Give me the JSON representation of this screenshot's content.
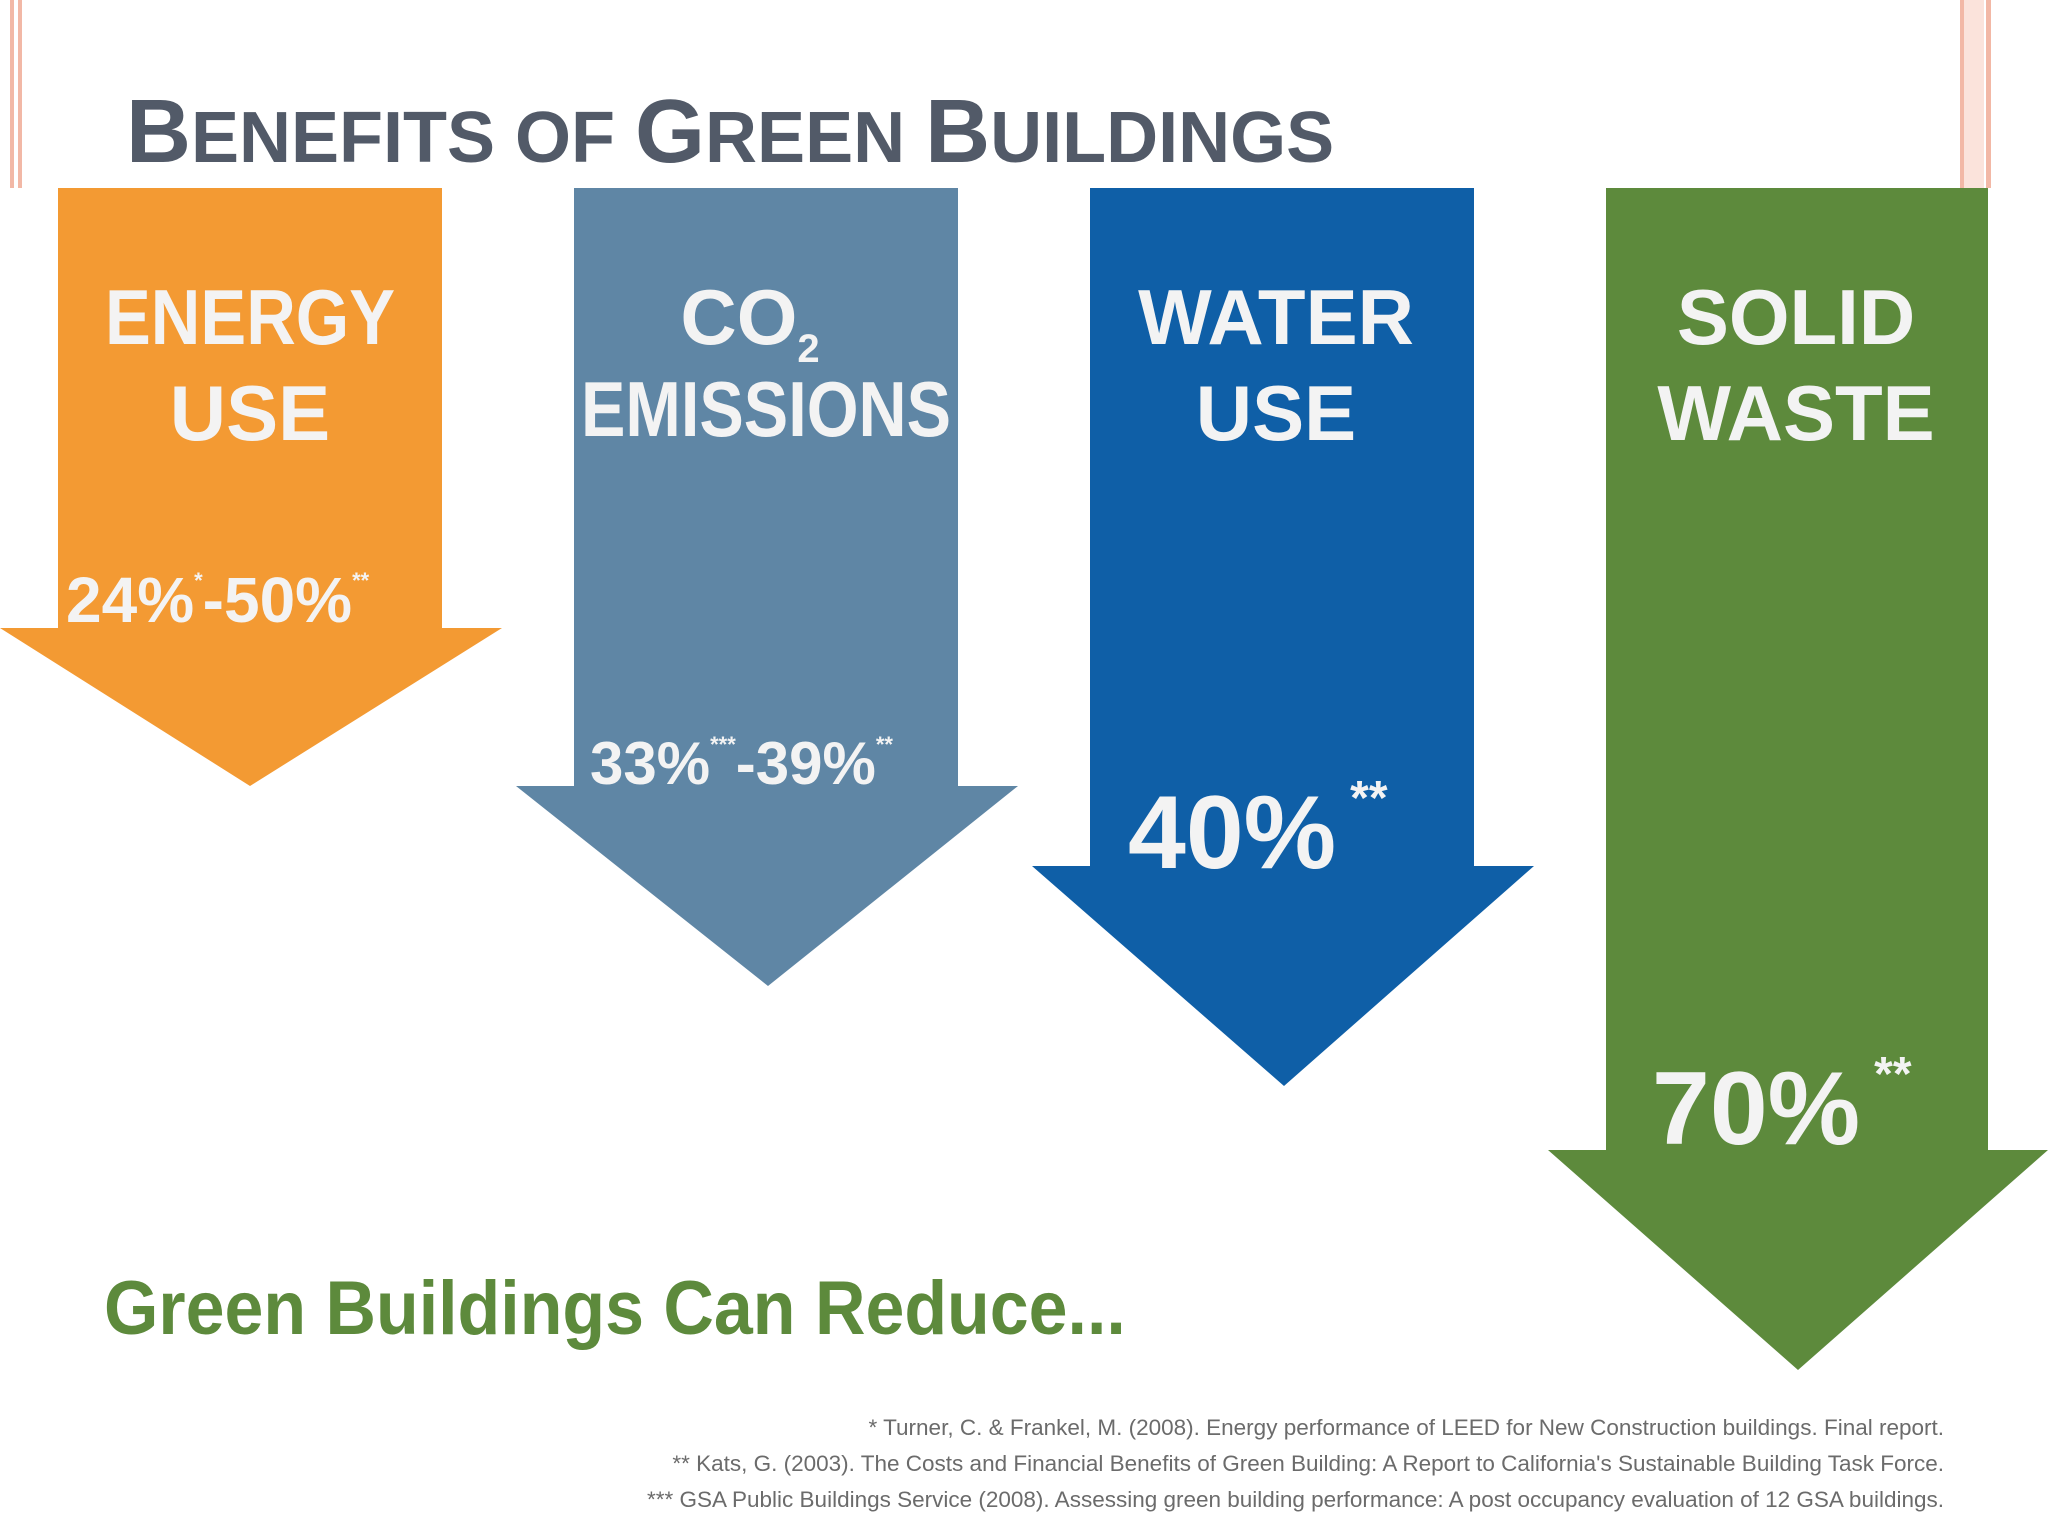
{
  "title": {
    "first": "B",
    "rest": "ENEFITS OF ",
    "g": "G",
    "reen": "REEN ",
    "b2": "B",
    "uildings": "UILDINGS"
  },
  "colors": {
    "title": "#525a68",
    "energy": "#f39a33",
    "co2": "#5f86a5",
    "water": "#0f5fa7",
    "waste": "#5d8a3c",
    "tagline": "#5d8a3c",
    "arrow_text": "#f3f3f3"
  },
  "arrows": [
    {
      "id": "energy",
      "line1": "ENERGY",
      "line2": "USE",
      "value": "24%",
      "mark1": "*",
      "dash": "-",
      "value2": "50%",
      "mark2": "**"
    },
    {
      "id": "co2",
      "line1": "CO",
      "subscript": "2",
      "line2": "EMISSIONS",
      "value": "33%",
      "mark1": "***",
      "dash": "-",
      "value2": "39%",
      "mark2": "**"
    },
    {
      "id": "water",
      "line1": "WATER",
      "line2": "USE",
      "value": "40%",
      "mark1": "**"
    },
    {
      "id": "waste",
      "line1": "SOLID",
      "line2": "WASTE",
      "value": "70%",
      "mark1": "**"
    }
  ],
  "tagline": "Green Buildings Can Reduce...",
  "references": [
    "* Turner, C. & Frankel, M. (2008). Energy performance of LEED for New Construction buildings. Final report.",
    "** Kats, G. (2003). The Costs and Financial Benefits of Green Building: A Report to California's Sustainable Building Task Force.",
    "*** GSA Public Buildings Service (2008). Assessing green building performance: A post occupancy evaluation of 12 GSA buildings."
  ]
}
